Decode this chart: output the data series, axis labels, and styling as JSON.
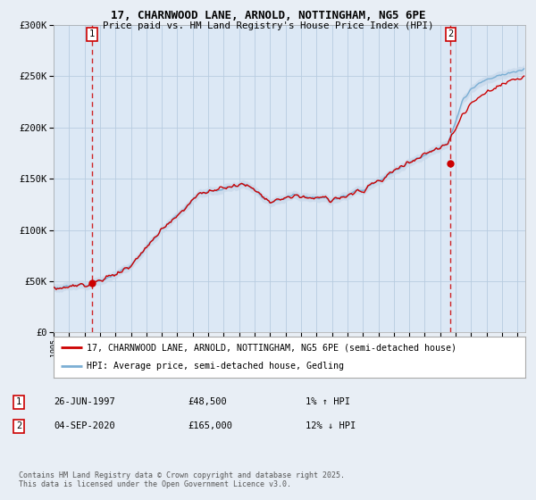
{
  "title_line1": "17, CHARNWOOD LANE, ARNOLD, NOTTINGHAM, NG5 6PE",
  "title_line2": "Price paid vs. HM Land Registry's House Price Index (HPI)",
  "legend_line1": "17, CHARNWOOD LANE, ARNOLD, NOTTINGHAM, NG5 6PE (semi-detached house)",
  "legend_line2": "HPI: Average price, semi-detached house, Gedling",
  "annotation1_date": "26-JUN-1997",
  "annotation1_price": "£48,500",
  "annotation1_hpi": "1% ↑ HPI",
  "annotation2_date": "04-SEP-2020",
  "annotation2_price": "£165,000",
  "annotation2_hpi": "12% ↓ HPI",
  "footnote": "Contains HM Land Registry data © Crown copyright and database right 2025.\nThis data is licensed under the Open Government Licence v3.0.",
  "sale1_year": 1997.49,
  "sale1_price": 48500,
  "sale2_year": 2020.67,
  "sale2_price": 165000,
  "vline1_year": 1997.49,
  "vline2_year": 2020.67,
  "red_line_color": "#cc0000",
  "blue_line_color": "#7bafd4",
  "blue_fill_color": "#c8d8ea",
  "background_color": "#e8eef5",
  "plot_bg_color": "#dce8f5",
  "grid_color": "#b8cce0",
  "ylim": [
    0,
    300000
  ],
  "xlim_start": 1995,
  "xlim_end": 2025.5
}
